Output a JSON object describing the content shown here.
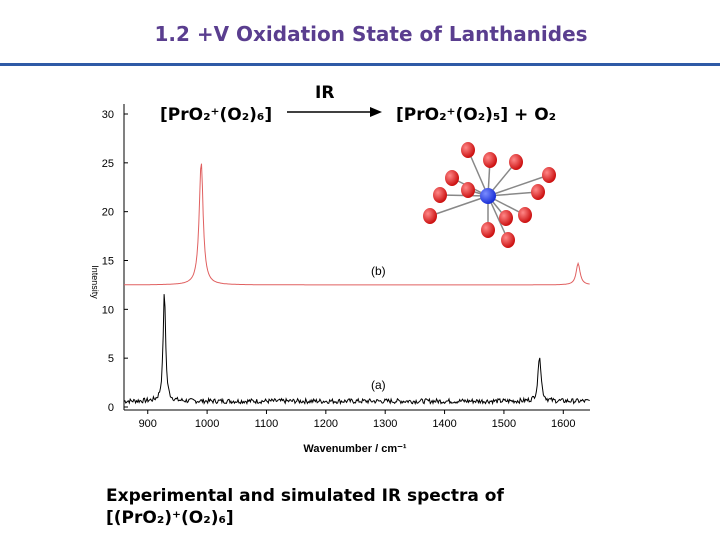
{
  "slide": {
    "title": "1.2 +V Oxidation State of Lanthanides",
    "caption_line1": "Experimental and simulated IR spectra of",
    "caption_line2": "[(PrO₂)⁺(O₂)₆]"
  },
  "reaction": {
    "reactant": "[PrO₂⁺(O₂)₆]",
    "arrow_label": "IR",
    "product": "[PrO₂⁺(O₂)₅] + O₂"
  },
  "chart_data": {
    "type": "line",
    "xlabel": "Wavenumber / cm⁻¹",
    "ylabel": "Intensity",
    "xlim": [
      860,
      1645
    ],
    "ylim": [
      0,
      30
    ],
    "x_ticks": [
      900,
      1000,
      1100,
      1200,
      1300,
      1400,
      1500,
      1600
    ],
    "y_ticks": [
      0,
      5,
      10,
      15,
      20,
      25,
      30
    ],
    "series": [
      {
        "name": "(b)",
        "label": "(b)",
        "color": "#e06060",
        "baseline": 12.5,
        "peaks": [
          {
            "x": 990,
            "height": 12.6,
            "width": 4
          },
          {
            "x": 1625,
            "height": 2.2,
            "width": 4
          }
        ],
        "noise": 0
      },
      {
        "name": "(a)",
        "label": "(a)",
        "color": "#000000",
        "baseline": 0.6,
        "peaks": [
          {
            "x": 928,
            "height": 11.2,
            "width": 2.5
          },
          {
            "x": 1560,
            "height": 4.8,
            "width": 3
          }
        ],
        "noise": 0.5
      }
    ]
  },
  "molecule": {
    "center_color": "#1a2fd6",
    "ligand_color": "#cc1111"
  }
}
